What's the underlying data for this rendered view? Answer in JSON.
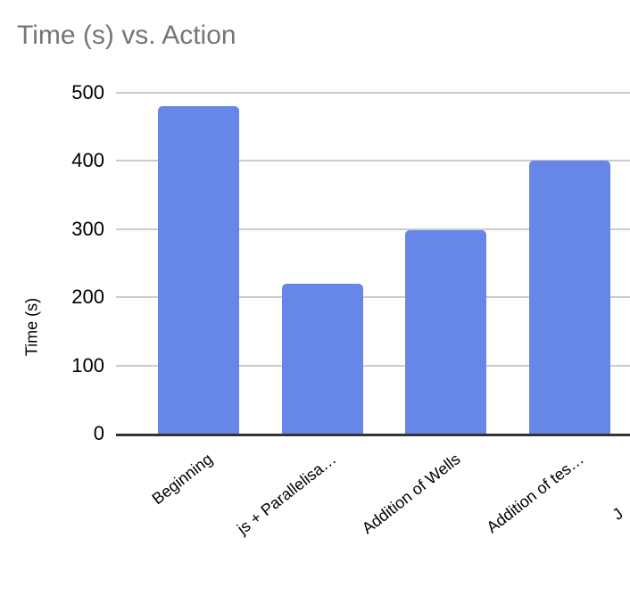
{
  "chart_data": {
    "type": "bar",
    "title": "Time (s) vs. Action",
    "xlabel": "",
    "ylabel": "Time (s)",
    "categories": [
      "Beginning",
      "js + Parallelisa…",
      "Addition of Wells",
      "Addition of tes…"
    ],
    "values": [
      480,
      220,
      298,
      400
    ],
    "partial_next_category_label": "J",
    "ylim": [
      0,
      500
    ],
    "yticks": [
      0,
      100,
      200,
      300,
      400,
      500
    ],
    "grid": true,
    "legend_position": "none",
    "bar_color": "#6787e8",
    "title_color": "#757575",
    "axis_text_color": "#000000",
    "gridline_color": "#cccccc",
    "baseline_color": "#333333",
    "background_color": "#ffffff"
  }
}
